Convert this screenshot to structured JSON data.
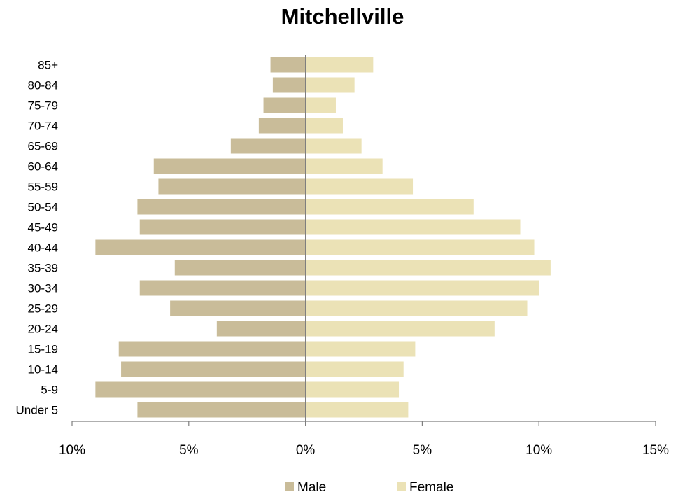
{
  "chart_data": {
    "type": "bar",
    "orientation": "horizontal",
    "layout": "population-pyramid",
    "title": "Mitchellville",
    "categories": [
      "Under 5",
      "5-9",
      "10-14",
      "15-19",
      "20-24",
      "25-29",
      "30-34",
      "35-39",
      "40-44",
      "45-49",
      "50-54",
      "55-59",
      "60-64",
      "65-69",
      "70-74",
      "75-79",
      "80-84",
      "85+"
    ],
    "series": [
      {
        "name": "Male",
        "color": "#c9bc99",
        "direction": "left",
        "values": [
          7.2,
          9.0,
          7.9,
          8.0,
          3.8,
          5.8,
          7.1,
          5.6,
          9.0,
          7.1,
          7.2,
          6.3,
          6.5,
          3.2,
          2.0,
          1.8,
          1.4,
          1.5
        ]
      },
      {
        "name": "Female",
        "color": "#ebe2b6",
        "direction": "right",
        "values": [
          4.4,
          4.0,
          4.2,
          4.7,
          8.1,
          9.5,
          10.0,
          10.5,
          9.8,
          9.2,
          7.2,
          4.6,
          3.3,
          2.4,
          1.6,
          1.3,
          2.1,
          2.9
        ]
      }
    ],
    "xlim": [
      -10,
      15
    ],
    "xticks": [
      -10,
      -5,
      0,
      5,
      10,
      15
    ],
    "xtick_labels": [
      "10%",
      "5%",
      "0%",
      "5%",
      "10%",
      "15%"
    ],
    "xlabel": "",
    "ylabel": "",
    "grid": false,
    "legend_position": "bottom"
  }
}
